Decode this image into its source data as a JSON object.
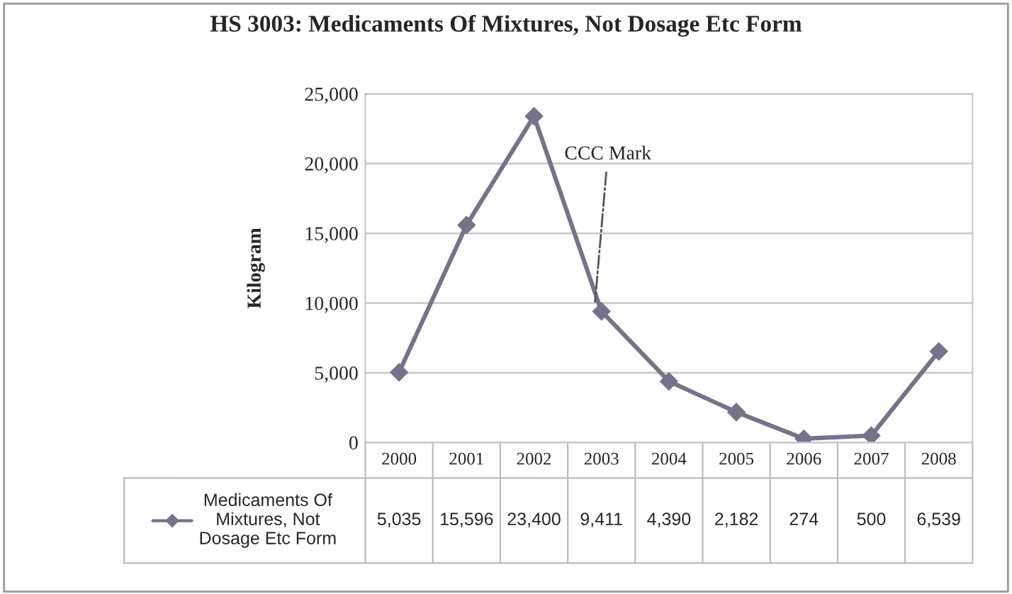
{
  "chart_data": {
    "type": "line",
    "title": "HS 3003: Medicaments Of Mixtures, Not Dosage Etc Form",
    "ylabel": "Kilogram",
    "categories": [
      "2000",
      "2001",
      "2002",
      "2003",
      "2004",
      "2005",
      "2006",
      "2007",
      "2008"
    ],
    "series": [
      {
        "name": "Medicaments Of Mixtures, Not Dosage Etc Form",
        "color": "#77728a",
        "values": [
          5035,
          15596,
          23400,
          9411,
          4390,
          2182,
          274,
          500,
          6539
        ],
        "value_labels": [
          "5,035",
          "15,596",
          "23,400",
          "9,411",
          "4,390",
          "2,182",
          "274",
          "500",
          "6,539"
        ]
      }
    ],
    "ylim": [
      0,
      25000
    ],
    "yticks": [
      {
        "value": 0,
        "label": "0"
      },
      {
        "value": 5000,
        "label": "5,000"
      },
      {
        "value": 10000,
        "label": "10,000"
      },
      {
        "value": 15000,
        "label": "15,000"
      },
      {
        "value": 20000,
        "label": "20,000"
      },
      {
        "value": 25000,
        "label": "25,000"
      }
    ],
    "annotations": [
      {
        "text": "CCC Mark",
        "x": "2003",
        "y": 9411
      }
    ],
    "grid": "y",
    "marker": "diamond",
    "line_style": "solid",
    "legend": "bottom"
  }
}
